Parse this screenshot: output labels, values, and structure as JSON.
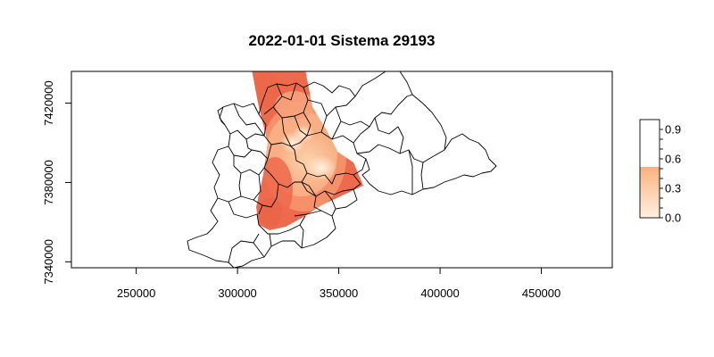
{
  "plot": {
    "title": "2022-01-01 Sistema 29193",
    "x_ticks": [
      "250000",
      "300000",
      "350000",
      "400000",
      "450000"
    ],
    "y_ticks": [
      "7340000",
      "7380000",
      "7420000"
    ],
    "legend_ticks": [
      "0.0",
      "0.3",
      "0.6",
      "0.9"
    ]
  },
  "map_data": {
    "type": "choropleth-heatmap-overlay",
    "xlim": [
      218000,
      485000
    ],
    "ylim": [
      7337000,
      7436000
    ],
    "x_tick_values": [
      250000,
      300000,
      350000,
      400000,
      450000
    ],
    "y_tick_values": [
      7340000,
      7380000,
      7420000
    ],
    "legend": {
      "placement": "right",
      "scale_min": 0.0,
      "scale_max": 1.0,
      "tick_values": [
        0.0,
        0.3,
        0.6,
        0.9
      ],
      "colors": {
        "low": "#fee8cf",
        "mid": "#fcae84",
        "high": "#ee6a4c",
        "top": "#ffffff"
      }
    },
    "colors": {
      "boundary": "#000000",
      "heat_high": "#ee6a4c",
      "heat_mid": "#f8a57a",
      "heat_low": "#fde0c4"
    }
  }
}
